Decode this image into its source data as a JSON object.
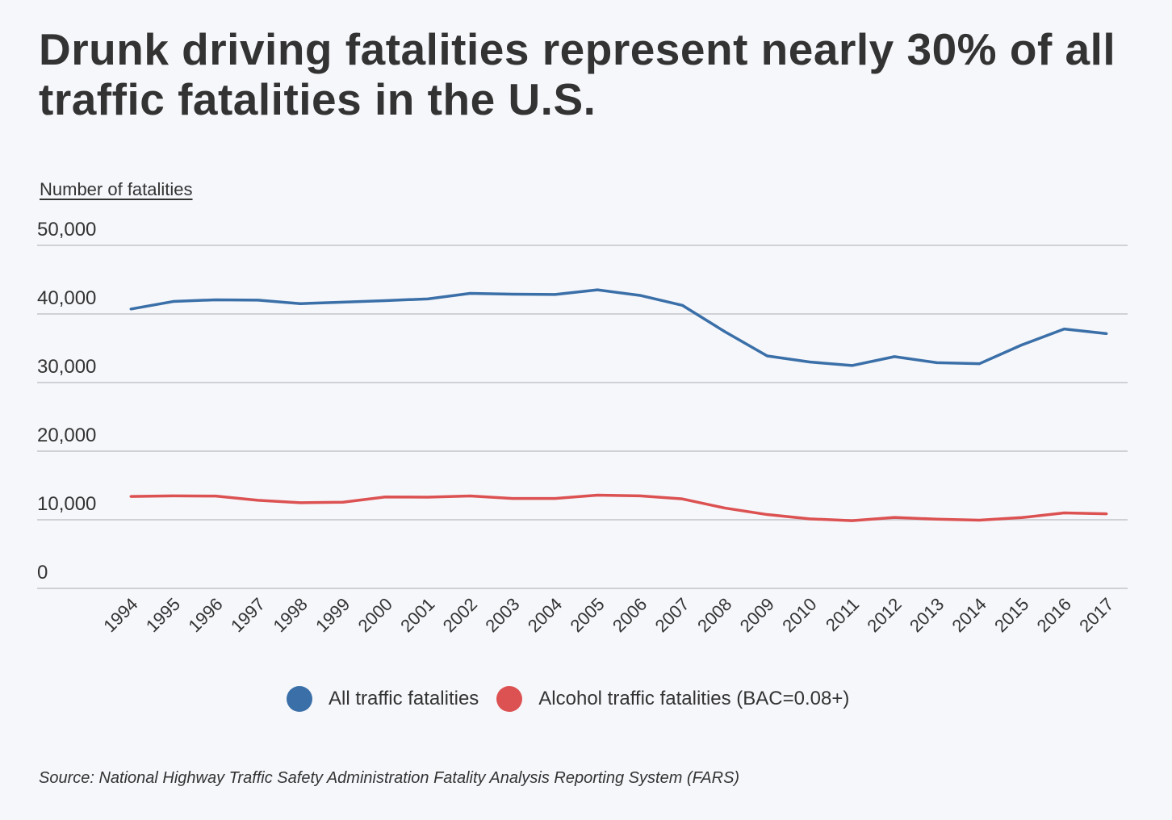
{
  "chart_data": {
    "type": "line",
    "title": "Drunk driving fatalities represent nearly 30% of all traffic fatalities in the U.S.",
    "ylabel": "Number of fatalities",
    "xlabel": "",
    "x": [
      "1994",
      "1995",
      "1996",
      "1997",
      "1998",
      "1999",
      "2000",
      "2001",
      "2002",
      "2003",
      "2004",
      "2005",
      "2006",
      "2007",
      "2008",
      "2009",
      "2010",
      "2011",
      "2012",
      "2013",
      "2014",
      "2015",
      "2016",
      "2017"
    ],
    "ylim": [
      0,
      50000
    ],
    "yticks": [
      "0",
      "10,000",
      "20,000",
      "30,000",
      "40,000",
      "50,000"
    ],
    "grid": true,
    "legend_position": "bottom",
    "series": [
      {
        "name": "All traffic fatalities",
        "color": "#3a6fa8",
        "values": [
          40716,
          41817,
          42065,
          42013,
          41501,
          41717,
          41945,
          42196,
          43005,
          42884,
          42836,
          43510,
          42708,
          41259,
          37423,
          33883,
          32999,
          32479,
          33782,
          32894,
          32744,
          35484,
          37806,
          37133
        ]
      },
      {
        "name": "Alcohol traffic fatalities (BAC=0.08+)",
        "color": "#dc5151",
        "values": [
          13390,
          13478,
          13451,
          12835,
          12486,
          12555,
          13324,
          13290,
          13472,
          13096,
          13099,
          13582,
          13491,
          13041,
          11711,
          10759,
          10136,
          9865,
          10336,
          10084,
          9943,
          10320,
          10996,
          10874
        ]
      }
    ],
    "source": "Source: National Highway Traffic Safety Administration Fatality Analysis Reporting System (FARS)"
  }
}
